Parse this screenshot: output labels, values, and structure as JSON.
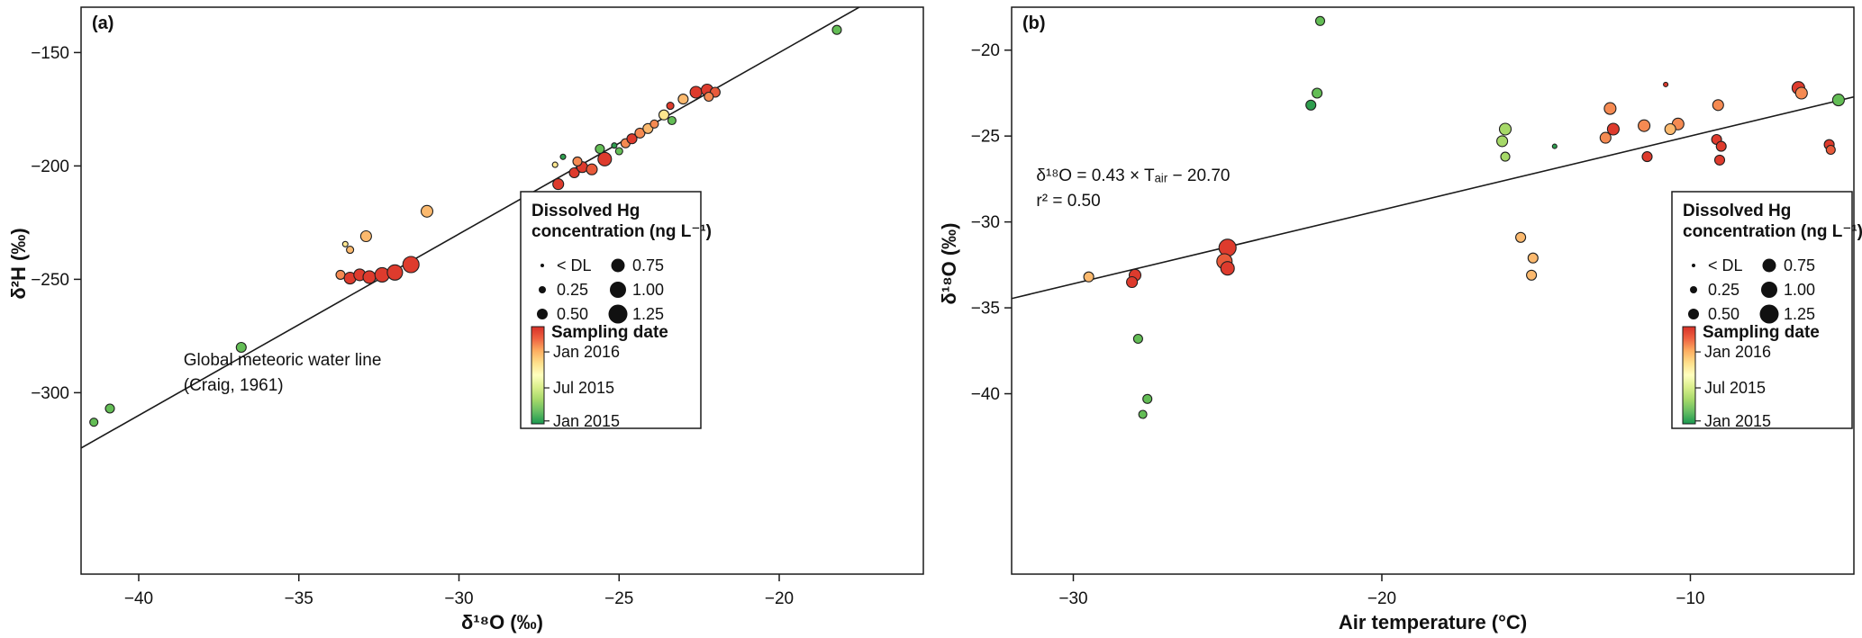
{
  "figure": {
    "background": "#ffffff"
  },
  "legend": {
    "hg_title": [
      "Dissolved Hg",
      "concentration (ng L⁻¹)"
    ],
    "hg_sizes": [
      {
        "label": "< DL",
        "r": 2
      },
      {
        "label": "0.25",
        "r": 4
      },
      {
        "label": "0.50",
        "r": 6
      },
      {
        "label": "0.75",
        "r": 7.5
      },
      {
        "label": "1.00",
        "r": 9
      },
      {
        "label": "1.25",
        "r": 10.5
      }
    ],
    "date_title": "Sampling date",
    "date_labels": [
      "Jan  2016",
      "Jul  2015",
      "Jan  2015"
    ],
    "gradient": [
      "#d73027",
      "#ef6342",
      "#fdae61",
      "#fee08b",
      "#ffffbf",
      "#d9ef8b",
      "#a6d96a",
      "#66bd63",
      "#1a9850"
    ]
  },
  "chart_data": [
    {
      "type": "scatter",
      "panel": "(a)",
      "xlabel": "δ¹⁸O (‰)",
      "ylabel": "δ²H (‰)",
      "xlim": [
        -41.8,
        -15.5
      ],
      "ylim": [
        -380,
        -130
      ],
      "xticks": [
        -40,
        -35,
        -30,
        -25,
        -20
      ],
      "yticks": [
        -150,
        -200,
        -250,
        -300
      ],
      "line": {
        "kind": "reference",
        "name": "Global meteoric water line (Craig, 1961)",
        "slope": 8,
        "intercept": 10
      },
      "annotation": {
        "x": -38.6,
        "y": -288,
        "lines": [
          "Global meteoric water line",
          "(Craig, 1961)"
        ]
      },
      "point_fields": [
        "d18O_permil",
        "d2H_permil",
        "marker_radius_px",
        "sampling_date_color"
      ],
      "points": [
        [
          -41.4,
          -313,
          4.5,
          "#63bd55"
        ],
        [
          -40.9,
          -307,
          5,
          "#63bd55"
        ],
        [
          -36.8,
          -280,
          5.5,
          "#63bd55"
        ],
        [
          -33.7,
          -248,
          5,
          "#f58a52"
        ],
        [
          -33.4,
          -249.5,
          6.5,
          "#de3b2d"
        ],
        [
          -33.1,
          -248,
          6.5,
          "#de3b2d"
        ],
        [
          -32.8,
          -249,
          7,
          "#de3b2d"
        ],
        [
          -32.4,
          -248,
          8,
          "#de3b2d"
        ],
        [
          -32.0,
          -247,
          8.5,
          "#de3b2d"
        ],
        [
          -31.5,
          -243.5,
          9,
          "#de3b2d"
        ],
        [
          -33.4,
          -237,
          4,
          "#fbb96e"
        ],
        [
          -33.55,
          -234.5,
          3,
          "#fde68f"
        ],
        [
          -32.9,
          -231,
          6,
          "#fbb96e"
        ],
        [
          -31.0,
          -220,
          6.5,
          "#fbb96e"
        ],
        [
          -26.9,
          -208,
          6,
          "#de3b2d"
        ],
        [
          -26.4,
          -203,
          5.5,
          "#de3b2d"
        ],
        [
          -26.15,
          -200.5,
          6,
          "#de3b2d"
        ],
        [
          -25.85,
          -201.5,
          6,
          "#e85a3a"
        ],
        [
          -26.3,
          -198,
          5,
          "#f58a52"
        ],
        [
          -26.75,
          -196,
          3,
          "#2e9e4e"
        ],
        [
          -27.0,
          -199.5,
          3,
          "#fde68f"
        ],
        [
          -25.45,
          -197,
          7.5,
          "#de3b2d"
        ],
        [
          -25.6,
          -192.5,
          5,
          "#63bd55"
        ],
        [
          -25.15,
          -191,
          3,
          "#2e9e4e"
        ],
        [
          -25.0,
          -193.5,
          4,
          "#63bd55"
        ],
        [
          -24.8,
          -190,
          5,
          "#f58a52"
        ],
        [
          -24.6,
          -188,
          5.5,
          "#de3b2d"
        ],
        [
          -24.35,
          -185.5,
          5.5,
          "#f58a52"
        ],
        [
          -24.1,
          -183.5,
          5.5,
          "#fbb96e"
        ],
        [
          -23.9,
          -181.5,
          4.5,
          "#f58a52"
        ],
        [
          -23.35,
          -180,
          4.5,
          "#63bd55"
        ],
        [
          -23.6,
          -177.5,
          5.5,
          "#fde68f"
        ],
        [
          -23.4,
          -173.5,
          4,
          "#de3b2d"
        ],
        [
          -23.0,
          -170.5,
          5.5,
          "#fbb96e"
        ],
        [
          -22.6,
          -167.5,
          6.5,
          "#de3b2d"
        ],
        [
          -22.25,
          -166.5,
          6.5,
          "#de3b2d"
        ],
        [
          -22.0,
          -167.5,
          5.5,
          "#e85a3a"
        ],
        [
          -22.2,
          -169.5,
          5,
          "#f58a52"
        ],
        [
          -18.2,
          -140,
          5,
          "#63bd55"
        ]
      ]
    },
    {
      "type": "scatter",
      "panel": "(b)",
      "xlabel": "Air temperature (°C)",
      "ylabel": "δ¹⁸O (‰)",
      "xlim": [
        -32,
        -4.7
      ],
      "ylim": [
        -50.5,
        -17.5
      ],
      "xticks": [
        -30,
        -20,
        -10
      ],
      "yticks": [
        -20,
        -25,
        -30,
        -35,
        -40
      ],
      "line": {
        "kind": "regression",
        "slope": 0.43,
        "intercept": -20.7,
        "r2": 0.5
      },
      "annotation": {
        "x": -31.2,
        "y": -27.6,
        "lines": [
          "δ¹⁸O = 0.43 × Tₐᵢᵣ − 20.70",
          "r² = 0.50"
        ]
      },
      "point_fields": [
        "air_temperature_C",
        "d18O_permil",
        "marker_radius_px",
        "sampling_date_color"
      ],
      "points": [
        [
          -29.5,
          -33.2,
          5.5,
          "#fbb96e"
        ],
        [
          -28.0,
          -33.1,
          6.5,
          "#de3b2d"
        ],
        [
          -28.1,
          -33.5,
          6,
          "#de3b2d"
        ],
        [
          -27.9,
          -36.8,
          5,
          "#63bd55"
        ],
        [
          -27.6,
          -40.3,
          5,
          "#63bd55"
        ],
        [
          -27.75,
          -41.2,
          4.5,
          "#63bd55"
        ],
        [
          -25.0,
          -31.5,
          9.5,
          "#de3b2d"
        ],
        [
          -25.1,
          -32.3,
          8.5,
          "#e85a3a"
        ],
        [
          -25.0,
          -32.7,
          7.5,
          "#de3b2d"
        ],
        [
          -22.0,
          -18.3,
          5,
          "#63bd55"
        ],
        [
          -22.1,
          -22.5,
          5.5,
          "#63bd55"
        ],
        [
          -22.3,
          -23.2,
          5.5,
          "#2e9e4e"
        ],
        [
          -16.0,
          -24.6,
          6.5,
          "#a6d968"
        ],
        [
          -16.1,
          -25.3,
          6,
          "#a6d968"
        ],
        [
          -16.0,
          -26.2,
          5,
          "#a6d968"
        ],
        [
          -15.5,
          -30.9,
          5.5,
          "#fbb96e"
        ],
        [
          -15.1,
          -32.1,
          5.5,
          "#fbb96e"
        ],
        [
          -15.15,
          -33.1,
          5.5,
          "#fbb96e"
        ],
        [
          -14.4,
          -25.6,
          2.5,
          "#2e9e4e"
        ],
        [
          -12.6,
          -23.4,
          6.5,
          "#f58a52"
        ],
        [
          -12.5,
          -24.6,
          6.5,
          "#de3b2d"
        ],
        [
          -12.75,
          -25.1,
          6,
          "#f58a52"
        ],
        [
          -11.5,
          -24.4,
          6.5,
          "#f58a52"
        ],
        [
          -11.4,
          -26.2,
          5.5,
          "#de3b2d"
        ],
        [
          -10.8,
          -22.0,
          2.5,
          "#de3b2d"
        ],
        [
          -10.4,
          -24.3,
          6.5,
          "#f58a52"
        ],
        [
          -10.65,
          -24.6,
          6,
          "#fbb96e"
        ],
        [
          -9.1,
          -23.2,
          6,
          "#f58a52"
        ],
        [
          -9.15,
          -25.2,
          5.5,
          "#de3b2d"
        ],
        [
          -9.0,
          -25.6,
          5.5,
          "#de3b2d"
        ],
        [
          -9.05,
          -26.4,
          5.5,
          "#de3b2d"
        ],
        [
          -6.5,
          -22.2,
          7,
          "#de3b2d"
        ],
        [
          -6.4,
          -22.5,
          6.5,
          "#f58a52"
        ],
        [
          -5.5,
          -25.5,
          5.5,
          "#de3b2d"
        ],
        [
          -5.45,
          -25.8,
          5,
          "#e85a3a"
        ],
        [
          -5.2,
          -22.9,
          6.5,
          "#63bd55"
        ]
      ]
    }
  ]
}
